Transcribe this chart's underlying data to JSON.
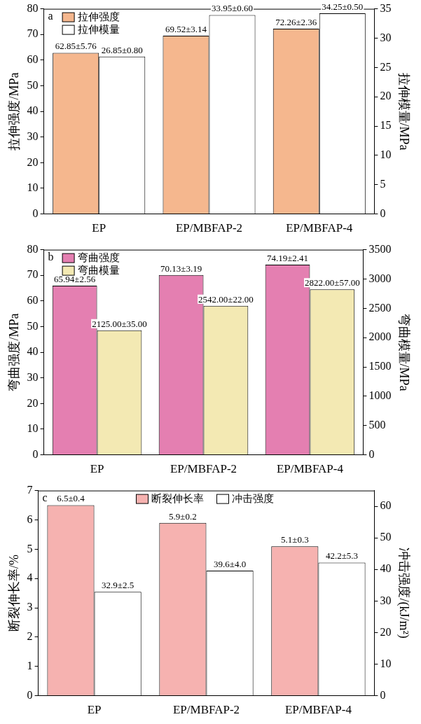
{
  "chart_data": [
    {
      "type": "bar",
      "annotations": [
        "a"
      ],
      "categories": [
        "EP",
        "EP/MBFAP-2",
        "EP/MBFAP-4"
      ],
      "ylabel": "拉伸强度/MPa",
      "y2label": "拉伸模量/MPa",
      "ylim": [
        0,
        80
      ],
      "yticks": [
        0,
        10,
        20,
        30,
        40,
        50,
        60,
        70,
        80
      ],
      "y2lim": [
        0,
        35
      ],
      "y2ticks": [
        0,
        5,
        10,
        15,
        20,
        25,
        30,
        35
      ],
      "legend": "top left",
      "grid": false,
      "series": [
        {
          "name": "拉伸强度",
          "color": "#f5b78e",
          "values": [
            62.85,
            69.52,
            72.26
          ],
          "value_labels": [
            "62.85±5.76",
            "69.52±3.14",
            "72.26±2.36"
          ]
        },
        {
          "name": "拉伸模量",
          "color": "#ffffff",
          "axis": "y2",
          "values": [
            26.85,
            33.95,
            34.25
          ],
          "value_labels": [
            "26.85±0.80",
            "33.95±0.60",
            "34.25±0.50"
          ]
        }
      ]
    },
    {
      "type": "bar",
      "annotations": [
        "b"
      ],
      "categories": [
        "EP",
        "EP/MBFAP-2",
        "EP/MBFAP-4"
      ],
      "ylabel": "弯曲强度/MPa",
      "y2label": "弯曲模量/MPa",
      "ylim": [
        0,
        80
      ],
      "yticks": [
        0,
        10,
        20,
        30,
        40,
        50,
        60,
        70,
        80
      ],
      "y2lim": [
        0,
        3500
      ],
      "y2ticks": [
        0,
        500,
        1000,
        1500,
        2000,
        2500,
        3000,
        3500
      ],
      "legend": "top left",
      "grid": false,
      "series": [
        {
          "name": "弯曲强度",
          "color": "#e47fb1",
          "values": [
            65.94,
            70.13,
            74.19
          ],
          "value_labels": [
            "65.94±2.56",
            "70.13±3.19",
            "74.19±2.41"
          ]
        },
        {
          "name": "弯曲模量",
          "color": "#f3e9b3",
          "axis": "y2",
          "values": [
            2125,
            2542,
            2822
          ],
          "value_labels": [
            "2125.00±35.00",
            "2542.00±22.00",
            "2822.00±57.00"
          ]
        }
      ]
    },
    {
      "type": "bar",
      "annotations": [
        "c"
      ],
      "categories": [
        "EP",
        "EP/MBFAP-2",
        "EP/MBFAP-4"
      ],
      "ylabel": "断裂伸长率/%",
      "y2label": "冲击强度/(kJ/m²)",
      "ylim": [
        0,
        7
      ],
      "yticks": [
        0,
        1,
        2,
        3,
        4,
        5,
        6,
        7
      ],
      "y2lim": [
        0,
        65
      ],
      "y2ticks": [
        0,
        10,
        20,
        30,
        40,
        50,
        60
      ],
      "legend": "top",
      "grid": false,
      "series": [
        {
          "name": "断裂伸长率",
          "color": "#f6b2b0",
          "values": [
            6.5,
            5.9,
            5.1
          ],
          "value_labels": [
            "6.5±0.4",
            "5.9±0.2",
            "5.1±0.3"
          ]
        },
        {
          "name": "冲击强度",
          "color": "#ffffff",
          "axis": "y2",
          "values": [
            32.9,
            39.6,
            42.2
          ],
          "value_labels": [
            "32.9±2.5",
            "39.6±4.0",
            "42.2±5.3"
          ]
        }
      ]
    }
  ]
}
